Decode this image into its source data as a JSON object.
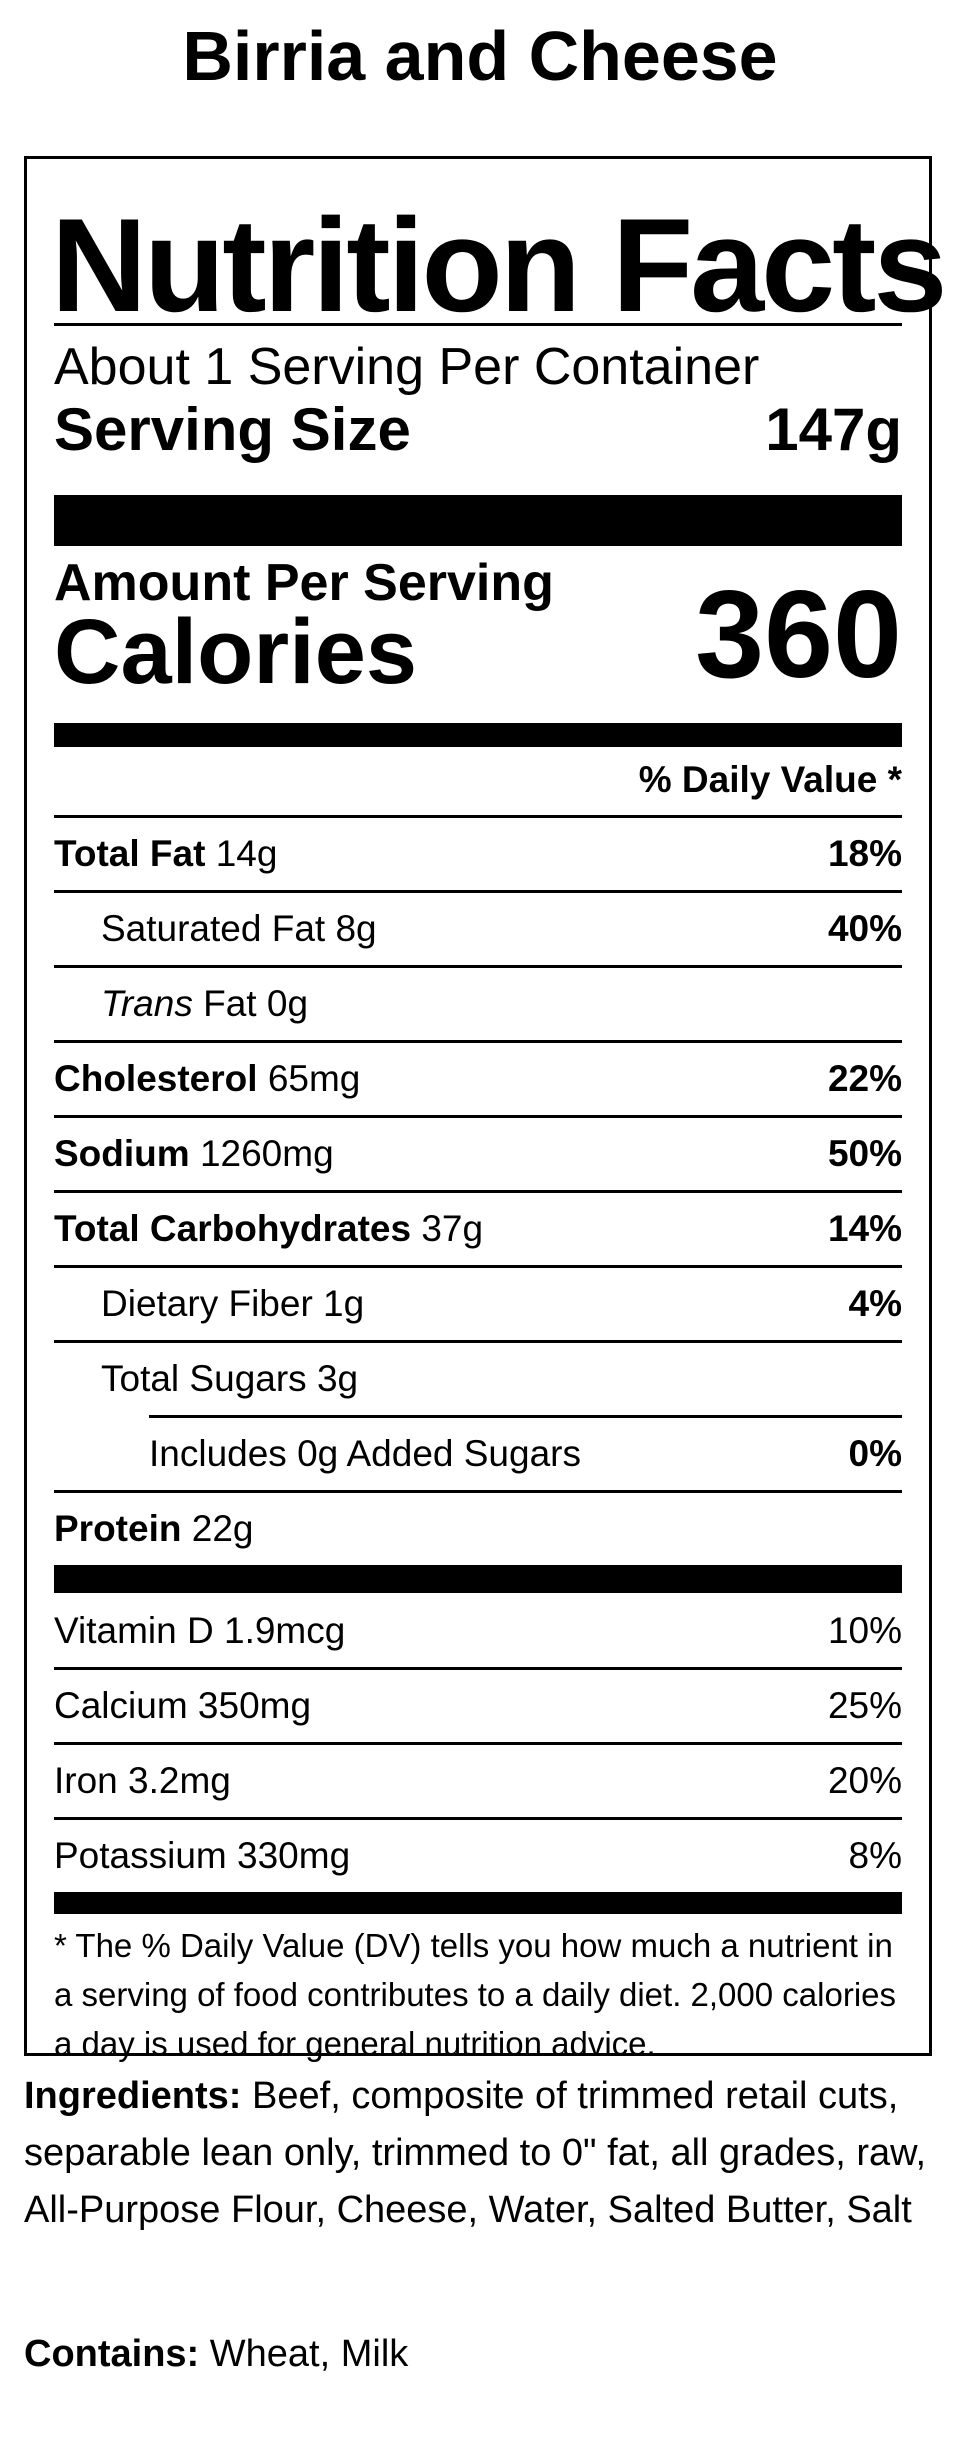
{
  "title": "Birria and Cheese",
  "label": {
    "heading": "Nutrition Facts",
    "servings_per_container": "About 1 Serving Per Container",
    "serving_size_label": "Serving Size",
    "serving_size_value": "147g",
    "amount_per_serving": "Amount Per Serving",
    "calories_label": "Calories",
    "calories_value": "360",
    "daily_value_header": "% Daily Value *",
    "nutrients": [
      {
        "name": "Total Fat",
        "amount": " 14g",
        "dv": "18%"
      },
      {
        "name": "Saturated Fat",
        "amount": " 8g",
        "dv": "40%"
      },
      {
        "name": "Trans",
        "amount": " Fat 0g",
        "dv": ""
      },
      {
        "name": "Cholesterol",
        "amount": " 65mg",
        "dv": "22%"
      },
      {
        "name": "Sodium",
        "amount": " 1260mg",
        "dv": "50%"
      },
      {
        "name": "Total Carbohydrates",
        "amount": " 37g",
        "dv": "14%"
      },
      {
        "name": "Dietary Fiber",
        "amount": " 1g",
        "dv": "4%"
      },
      {
        "name": "Total Sugars",
        "amount": " 3g",
        "dv": ""
      },
      {
        "name": "Includes 0g Added Sugars",
        "amount": "",
        "dv": "0%"
      },
      {
        "name": "Protein",
        "amount": " 22g",
        "dv": ""
      }
    ],
    "vitamins": [
      {
        "name": "Vitamin D 1.9mcg",
        "dv": "10%"
      },
      {
        "name": "Calcium 350mg",
        "dv": "25%"
      },
      {
        "name": "Iron 3.2mg",
        "dv": "20%"
      },
      {
        "name": "Potassium 330mg",
        "dv": "8%"
      }
    ],
    "footnote": "* The % Daily Value (DV) tells you how much a nutrient in a serving of food contributes to a daily diet. 2,000 calories a day is used for general nutrition advice."
  },
  "ingredients": {
    "label": "Ingredients:",
    "text": " Beef, composite of trimmed retail cuts, separable lean only, trimmed to 0\" fat, all grades, raw, All-Purpose Flour, Cheese, Water, Salted Butter, Salt"
  },
  "contains": {
    "label": "Contains:",
    "text": " Wheat, Milk"
  }
}
